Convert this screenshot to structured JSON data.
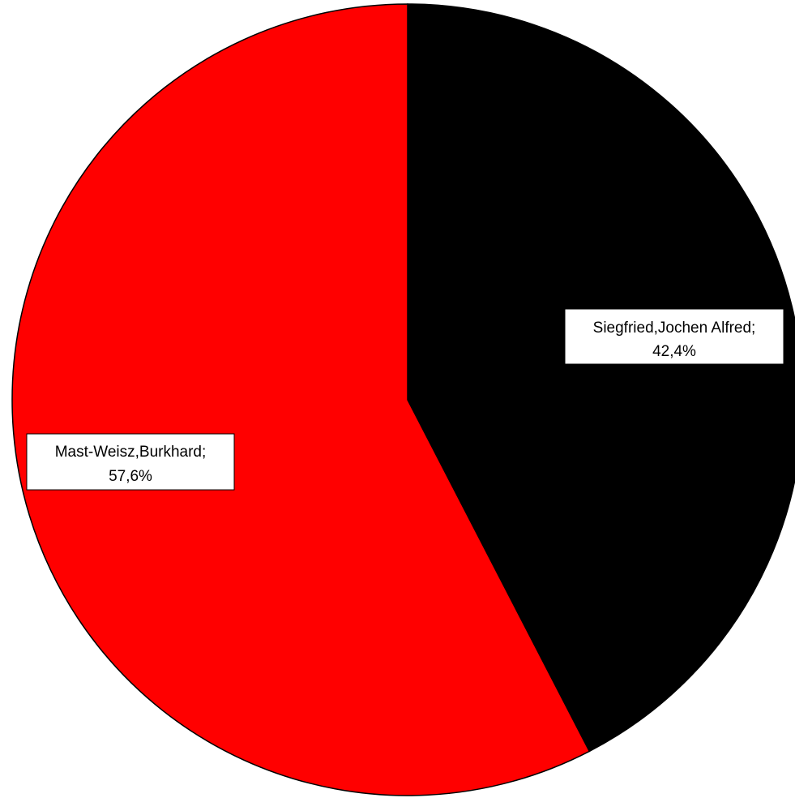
{
  "chart_data": {
    "type": "pie",
    "slices": [
      {
        "name": "Siegfried,Jochen Alfred",
        "value": 42.4,
        "label_line1": "Siegfried,Jochen Alfred;",
        "label_line2": "42,4%",
        "color": "#000000"
      },
      {
        "name": "Mast-Weisz,Burkhard",
        "value": 57.6,
        "label_line1": "Mast-Weisz,Burkhard;",
        "label_line2": "57,6%",
        "color": "#ff0000"
      }
    ],
    "start_angle_deg": 0,
    "direction": "clockwise",
    "legend": "none"
  }
}
